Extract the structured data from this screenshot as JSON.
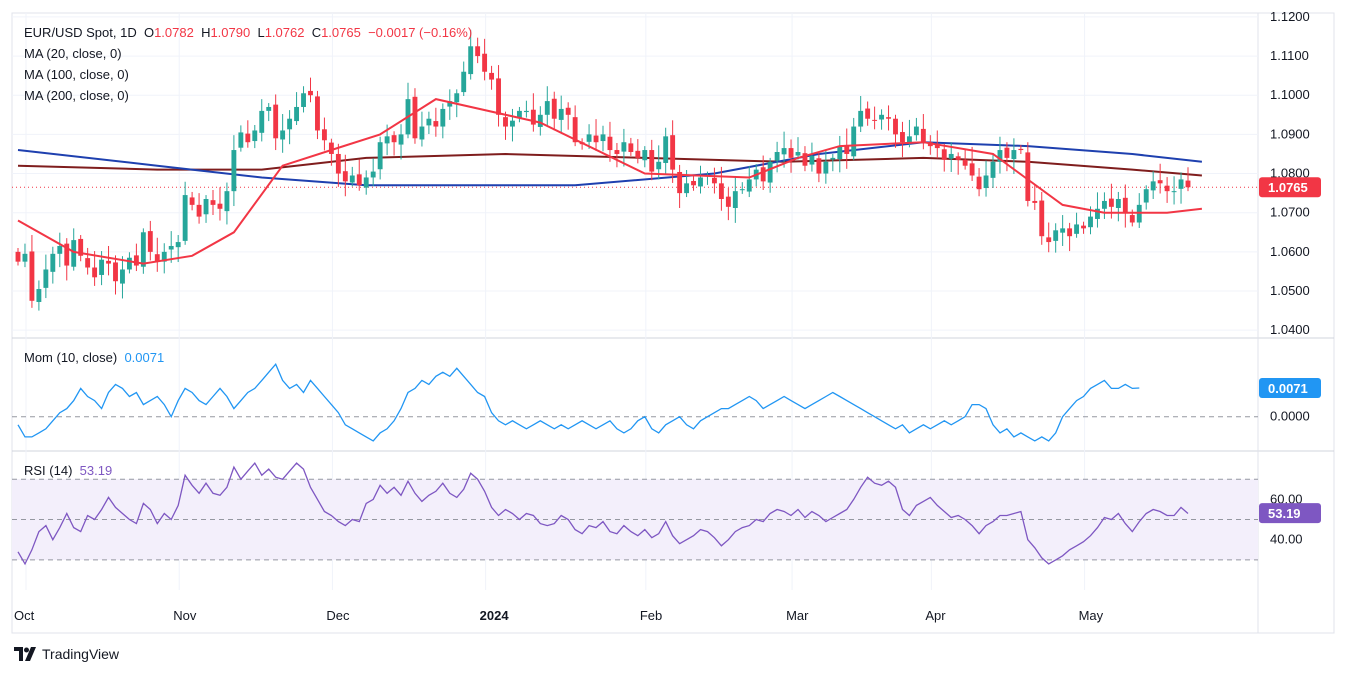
{
  "symbol": {
    "name": "EUR/USD Spot, 1D",
    "o_label": "O",
    "open": "1.0782",
    "h_label": "H",
    "high": "1.0790",
    "l_label": "L",
    "low": "1.0762",
    "c_label": "C",
    "close": "1.0765",
    "change": "−0.0017 (−0.16%)"
  },
  "indicators": {
    "ma20": "MA (20, close, 0)",
    "ma100": "MA (100, close, 0)",
    "ma200": "MA (200, close, 0)",
    "mom_label": "Mom (10, close)",
    "mom_value": "0.0071",
    "rsi_label": "RSI (14)",
    "rsi_value": "53.19"
  },
  "brand": "TradingView",
  "colors": {
    "up": "#26a69a",
    "down": "#f23645",
    "ma20": "#f23645",
    "ma100": "#1e40af",
    "ma200": "#7f1d1d",
    "mom": "#2196f3",
    "rsi": "#7e57c2",
    "rsi_band": "#f3effb"
  },
  "chart_data": [
    {
      "type": "candlestick",
      "title": "EUR/USD Spot, 1D",
      "price_axis": [
        "1.1200",
        "1.1100",
        "1.1000",
        "1.0900",
        "1.0800",
        "1.0700",
        "1.0600",
        "1.0500",
        "1.0400"
      ],
      "ylim": [
        1.038,
        1.121
      ],
      "last_price_label": "1.0765",
      "time_labels": [
        "Oct",
        "Nov",
        "Dec",
        "2024",
        "Feb",
        "Mar",
        "Apr",
        "May"
      ],
      "closes": [
        1.0575,
        1.0595,
        1.0475,
        1.0505,
        1.0555,
        1.0595,
        1.0615,
        1.0565,
        1.063,
        1.059,
        1.056,
        1.0535,
        1.058,
        1.057,
        1.0525,
        1.0555,
        1.0585,
        1.0565,
        1.065,
        1.06,
        1.0575,
        1.06,
        1.0615,
        1.0625,
        1.0745,
        1.072,
        1.069,
        1.0735,
        1.072,
        1.071,
        1.0755,
        1.086,
        1.0905,
        1.088,
        1.091,
        1.096,
        1.097,
        1.089,
        1.091,
        1.094,
        1.097,
        1.1005,
        1.1,
        1.091,
        1.0885,
        1.085,
        1.08,
        1.078,
        1.0795,
        1.077,
        1.079,
        1.0805,
        1.088,
        1.0895,
        1.088,
        1.09,
        1.099,
        1.089,
        1.092,
        1.094,
        1.092,
        1.0965,
        1.0985,
        1.1005,
        1.106,
        1.1125,
        1.11,
        1.106,
        1.104,
        1.095,
        1.092,
        1.0935,
        1.096,
        1.096,
        1.0925,
        1.095,
        1.0985,
        1.094,
        1.0965,
        1.095,
        1.088,
        1.0875,
        1.09,
        1.088,
        1.09,
        1.086,
        1.085,
        1.088,
        1.0855,
        1.084,
        1.086,
        1.0805,
        1.083,
        1.0895,
        1.081,
        1.075,
        1.0775,
        1.077,
        1.079,
        1.0795,
        1.0775,
        1.0735,
        1.0715,
        1.0755,
        1.076,
        1.0785,
        1.081,
        1.078,
        1.083,
        1.0855,
        1.0865,
        1.084,
        1.0855,
        1.082,
        1.0845,
        1.08,
        1.083,
        1.084,
        1.087,
        1.085,
        1.092,
        1.096,
        1.094,
        1.0935,
        1.095,
        1.094,
        1.09,
        1.088,
        1.0895,
        1.092,
        1.088,
        1.087,
        1.0865,
        1.0835,
        1.085,
        1.0835,
        1.082,
        1.0795,
        1.076,
        1.0795,
        1.083,
        1.086,
        1.084,
        1.086,
        1.086,
        1.073,
        1.0725,
        1.064,
        1.0625,
        1.0655,
        1.066,
        1.064,
        1.067,
        1.066,
        1.069,
        1.071,
        1.073,
        1.0715,
        1.0735,
        1.07,
        1.0675,
        1.072,
        1.076,
        1.078,
        1.0775,
        1.0755,
        1.0755,
        1.0785,
        1.0765
      ],
      "ma20": {
        "x": [
          0,
          8,
          18,
          25,
          31,
          38,
          45,
          52,
          60,
          75,
          90,
          105,
          112,
          118,
          130,
          140,
          150,
          156,
          165,
          170
        ],
        "y": [
          1.068,
          1.06,
          1.057,
          1.059,
          1.065,
          1.082,
          1.086,
          1.09,
          1.099,
          1.093,
          1.08,
          1.079,
          1.084,
          1.087,
          1.088,
          1.085,
          1.072,
          1.07,
          1.07,
          1.071
        ]
      },
      "ma100": {
        "x": [
          0,
          20,
          35,
          50,
          60,
          80,
          100,
          115,
          130,
          145,
          160,
          170
        ],
        "y": [
          1.086,
          1.082,
          1.079,
          1.077,
          1.077,
          1.077,
          1.08,
          1.085,
          1.088,
          1.087,
          1.085,
          1.083
        ]
      },
      "ma200": {
        "x": [
          0,
          20,
          35,
          50,
          70,
          90,
          110,
          130,
          145,
          160,
          170
        ],
        "y": [
          1.082,
          1.081,
          1.081,
          1.084,
          1.085,
          1.084,
          1.083,
          1.084,
          1.083,
          1.081,
          1.0795
        ]
      }
    },
    {
      "type": "line",
      "title": "Mom (10, close)",
      "series": [
        {
          "name": "Mom (10, close)",
          "values": [
            -0.002,
            -0.005,
            -0.005,
            -0.004,
            -0.003,
            -0.001,
            0.001,
            0.002,
            0.004,
            0.007,
            0.005,
            0.004,
            0.002,
            0.006,
            0.008,
            0.007,
            0.005,
            0.006,
            0.003,
            0.004,
            0.005,
            0.003,
            0.0,
            0.004,
            0.007,
            0.006,
            0.004,
            0.003,
            0.005,
            0.007,
            0.005,
            0.002,
            0.004,
            0.006,
            0.007,
            0.009,
            0.011,
            0.013,
            0.009,
            0.007,
            0.008,
            0.006,
            0.009,
            0.007,
            0.005,
            0.003,
            0.001,
            -0.002,
            -0.003,
            -0.004,
            -0.005,
            -0.006,
            -0.004,
            -0.003,
            -0.001,
            0.002,
            0.006,
            0.007,
            0.009,
            0.008,
            0.01,
            0.011,
            0.01,
            0.012,
            0.01,
            0.008,
            0.006,
            0.005,
            0.001,
            -0.001,
            -0.002,
            -0.001,
            -0.002,
            -0.003,
            -0.002,
            -0.001,
            -0.002,
            -0.003,
            -0.002,
            -0.003,
            -0.002,
            -0.001,
            -0.002,
            -0.003,
            -0.002,
            -0.001,
            -0.003,
            -0.004,
            -0.003,
            -0.001,
            0.0,
            -0.003,
            -0.004,
            -0.002,
            -0.001,
            0.0,
            -0.002,
            -0.003,
            -0.001,
            0.0,
            0.001,
            0.002,
            0.002,
            0.003,
            0.004,
            0.005,
            0.004,
            0.002,
            0.003,
            0.004,
            0.005,
            0.004,
            0.003,
            0.002,
            0.003,
            0.004,
            0.005,
            0.006,
            0.005,
            0.004,
            0.003,
            0.002,
            0.001,
            0.0,
            -0.001,
            -0.002,
            -0.003,
            -0.002,
            -0.004,
            -0.003,
            -0.002,
            -0.003,
            -0.002,
            -0.001,
            -0.002,
            -0.001,
            0.0,
            0.003,
            0.003,
            0.002,
            -0.002,
            -0.004,
            -0.003,
            -0.005,
            -0.004,
            -0.005,
            -0.006,
            -0.005,
            -0.006,
            -0.004,
            0.0,
            0.002,
            0.004,
            0.005,
            0.007,
            0.008,
            0.009,
            0.007,
            0.007,
            0.008,
            0.007,
            0.0071
          ]
        }
      ],
      "ylim": [
        -0.0075,
        0.0185
      ],
      "axis_labels": [
        "0.0000"
      ],
      "last_value_label": "0.0071"
    },
    {
      "type": "line",
      "title": "RSI (14)",
      "series": [
        {
          "name": "RSI (14)",
          "values": [
            34,
            28,
            35,
            44,
            47,
            40,
            46,
            53,
            46,
            44,
            52,
            50,
            55,
            61,
            56,
            53,
            50,
            48,
            58,
            55,
            48,
            53,
            50,
            57,
            72,
            67,
            63,
            68,
            63,
            62,
            66,
            76,
            70,
            74,
            78,
            72,
            75,
            71,
            70,
            74,
            78,
            75,
            66,
            60,
            54,
            52,
            49,
            47,
            50,
            49,
            58,
            60,
            67,
            63,
            66,
            62,
            69,
            63,
            59,
            62,
            64,
            68,
            63,
            61,
            65,
            73,
            70,
            64,
            56,
            52,
            55,
            53,
            50,
            53,
            52,
            48,
            47,
            48,
            52,
            50,
            45,
            43,
            47,
            46,
            49,
            44,
            43,
            47,
            44,
            42,
            45,
            41,
            43,
            49,
            42,
            38,
            40,
            42,
            45,
            44,
            41,
            37,
            40,
            44,
            46,
            47,
            50,
            49,
            53,
            55,
            54,
            52,
            55,
            51,
            54,
            52,
            49,
            51,
            53,
            55,
            60,
            66,
            71,
            68,
            67,
            69,
            66,
            55,
            52,
            57,
            59,
            61,
            57,
            54,
            51,
            52,
            50,
            47,
            43,
            47,
            49,
            52,
            52,
            53,
            54,
            40,
            36,
            31,
            28,
            30,
            32,
            35,
            37,
            39,
            42,
            46,
            51,
            50,
            53,
            48,
            44,
            49,
            53,
            55,
            54,
            52,
            52,
            56,
            53
          ]
        }
      ],
      "ylim": [
        23,
        82
      ],
      "axis_labels": [
        "60.00",
        "40.00"
      ],
      "levels": [
        70,
        50,
        30
      ],
      "last_value_label": "53.19"
    }
  ]
}
